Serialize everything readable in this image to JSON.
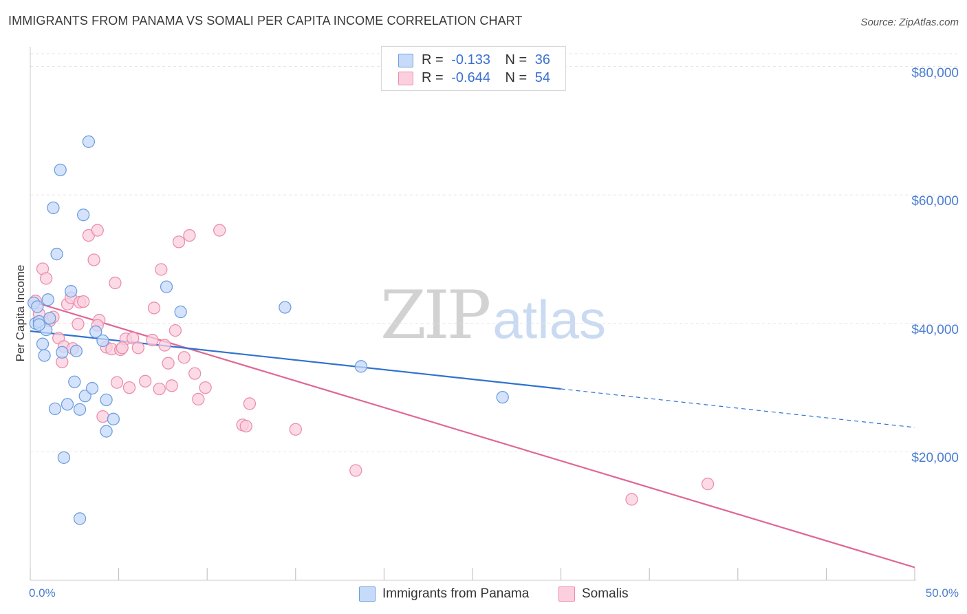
{
  "title": "IMMIGRANTS FROM PANAMA VS SOMALI PER CAPITA INCOME CORRELATION CHART",
  "source": "Source: ZipAtlas.com",
  "watermark": {
    "zip": "ZIP",
    "atlas": "atlas"
  },
  "legend": {
    "rows": [
      {
        "r_label": "R =",
        "r_value": "-0.133",
        "n_label": "N =",
        "n_value": "36"
      },
      {
        "r_label": "R =",
        "r_value": "-0.644",
        "n_label": "N =",
        "n_value": "54"
      }
    ]
  },
  "bottom_legend": [
    "Immigrants from Panama",
    "Somalis"
  ],
  "colors": {
    "panama_fill": "#c6dafa",
    "panama_stroke": "#6f9fde",
    "panama_line": "#2f72d0",
    "somali_fill": "#fbcfdd",
    "somali_stroke": "#ea8fae",
    "somali_line": "#e06696",
    "tick_text": "#4a7dd0",
    "grid": "#e3e3e3"
  },
  "chart_data": {
    "type": "scatter",
    "title": "IMMIGRANTS FROM PANAMA VS SOMALI PER CAPITA INCOME CORRELATION CHART",
    "xlabel": "",
    "ylabel": "Per Capita Income",
    "xlim": [
      0,
      50
    ],
    "ylim": [
      0,
      82000
    ],
    "x_tick_labels": [
      "0.0%",
      "50.0%"
    ],
    "y_ticks": [
      20000,
      40000,
      60000,
      80000
    ],
    "y_tick_labels": [
      "$20,000",
      "$40,000",
      "$60,000",
      "$80,000"
    ],
    "series": [
      {
        "name": "Immigrants from Panama",
        "R": -0.133,
        "N": 36,
        "points": [
          [
            0.2,
            43200
          ],
          [
            0.3,
            40000
          ],
          [
            0.4,
            42600
          ],
          [
            0.5,
            40300
          ],
          [
            0.7,
            36800
          ],
          [
            0.8,
            35000
          ],
          [
            0.9,
            39000
          ],
          [
            1.0,
            43700
          ],
          [
            1.1,
            40800
          ],
          [
            1.4,
            26700
          ],
          [
            1.5,
            50800
          ],
          [
            1.7,
            63900
          ],
          [
            1.3,
            58000
          ],
          [
            1.8,
            35500
          ],
          [
            1.9,
            19100
          ],
          [
            2.1,
            27400
          ],
          [
            2.3,
            45000
          ],
          [
            2.5,
            30900
          ],
          [
            2.6,
            35700
          ],
          [
            2.8,
            26600
          ],
          [
            2.8,
            9600
          ],
          [
            3.0,
            56900
          ],
          [
            3.1,
            28700
          ],
          [
            3.3,
            68300
          ],
          [
            3.5,
            29900
          ],
          [
            3.7,
            38700
          ],
          [
            4.1,
            37300
          ],
          [
            4.3,
            28100
          ],
          [
            4.3,
            23200
          ],
          [
            4.7,
            25100
          ],
          [
            7.7,
            45700
          ],
          [
            8.5,
            41800
          ],
          [
            14.4,
            42500
          ],
          [
            18.7,
            33300
          ],
          [
            26.7,
            28500
          ],
          [
            0.5,
            39800
          ]
        ],
        "trend": {
          "x": [
            0,
            30
          ],
          "y": [
            38800,
            29800
          ]
        },
        "trend_dashed": {
          "x": [
            30,
            50
          ],
          "y": [
            29800,
            23800
          ]
        }
      },
      {
        "name": "Somalis",
        "R": -0.644,
        "N": 54,
        "points": [
          [
            0.3,
            43500
          ],
          [
            0.5,
            41500
          ],
          [
            0.7,
            48500
          ],
          [
            0.9,
            47000
          ],
          [
            1.1,
            40400
          ],
          [
            1.3,
            41000
          ],
          [
            1.6,
            37700
          ],
          [
            1.8,
            34000
          ],
          [
            1.9,
            36400
          ],
          [
            2.1,
            43000
          ],
          [
            2.3,
            44000
          ],
          [
            2.4,
            36100
          ],
          [
            2.7,
            39900
          ],
          [
            2.8,
            43300
          ],
          [
            3.0,
            43400
          ],
          [
            3.3,
            53700
          ],
          [
            3.6,
            49900
          ],
          [
            3.8,
            54500
          ],
          [
            3.9,
            40500
          ],
          [
            4.1,
            25500
          ],
          [
            4.3,
            36300
          ],
          [
            4.6,
            36000
          ],
          [
            4.8,
            46300
          ],
          [
            4.9,
            30800
          ],
          [
            5.1,
            35900
          ],
          [
            5.4,
            37600
          ],
          [
            5.6,
            30000
          ],
          [
            5.8,
            37700
          ],
          [
            6.1,
            36200
          ],
          [
            6.5,
            31000
          ],
          [
            7.0,
            42400
          ],
          [
            7.3,
            29800
          ],
          [
            7.4,
            48400
          ],
          [
            7.6,
            36600
          ],
          [
            7.8,
            33800
          ],
          [
            8.0,
            30300
          ],
          [
            8.2,
            38900
          ],
          [
            8.4,
            52700
          ],
          [
            8.7,
            34700
          ],
          [
            9.0,
            53700
          ],
          [
            9.3,
            32200
          ],
          [
            9.5,
            28200
          ],
          [
            9.9,
            30000
          ],
          [
            10.7,
            54500
          ],
          [
            12.0,
            24200
          ],
          [
            12.2,
            24000
          ],
          [
            12.4,
            27500
          ],
          [
            15.0,
            23500
          ],
          [
            18.4,
            17100
          ],
          [
            34.0,
            12600
          ],
          [
            38.3,
            15000
          ],
          [
            3.8,
            39700
          ],
          [
            5.2,
            36200
          ],
          [
            6.9,
            37400
          ]
        ],
        "trend": {
          "x": [
            0,
            50
          ],
          "y": [
            43500,
            2000
          ]
        }
      }
    ]
  }
}
